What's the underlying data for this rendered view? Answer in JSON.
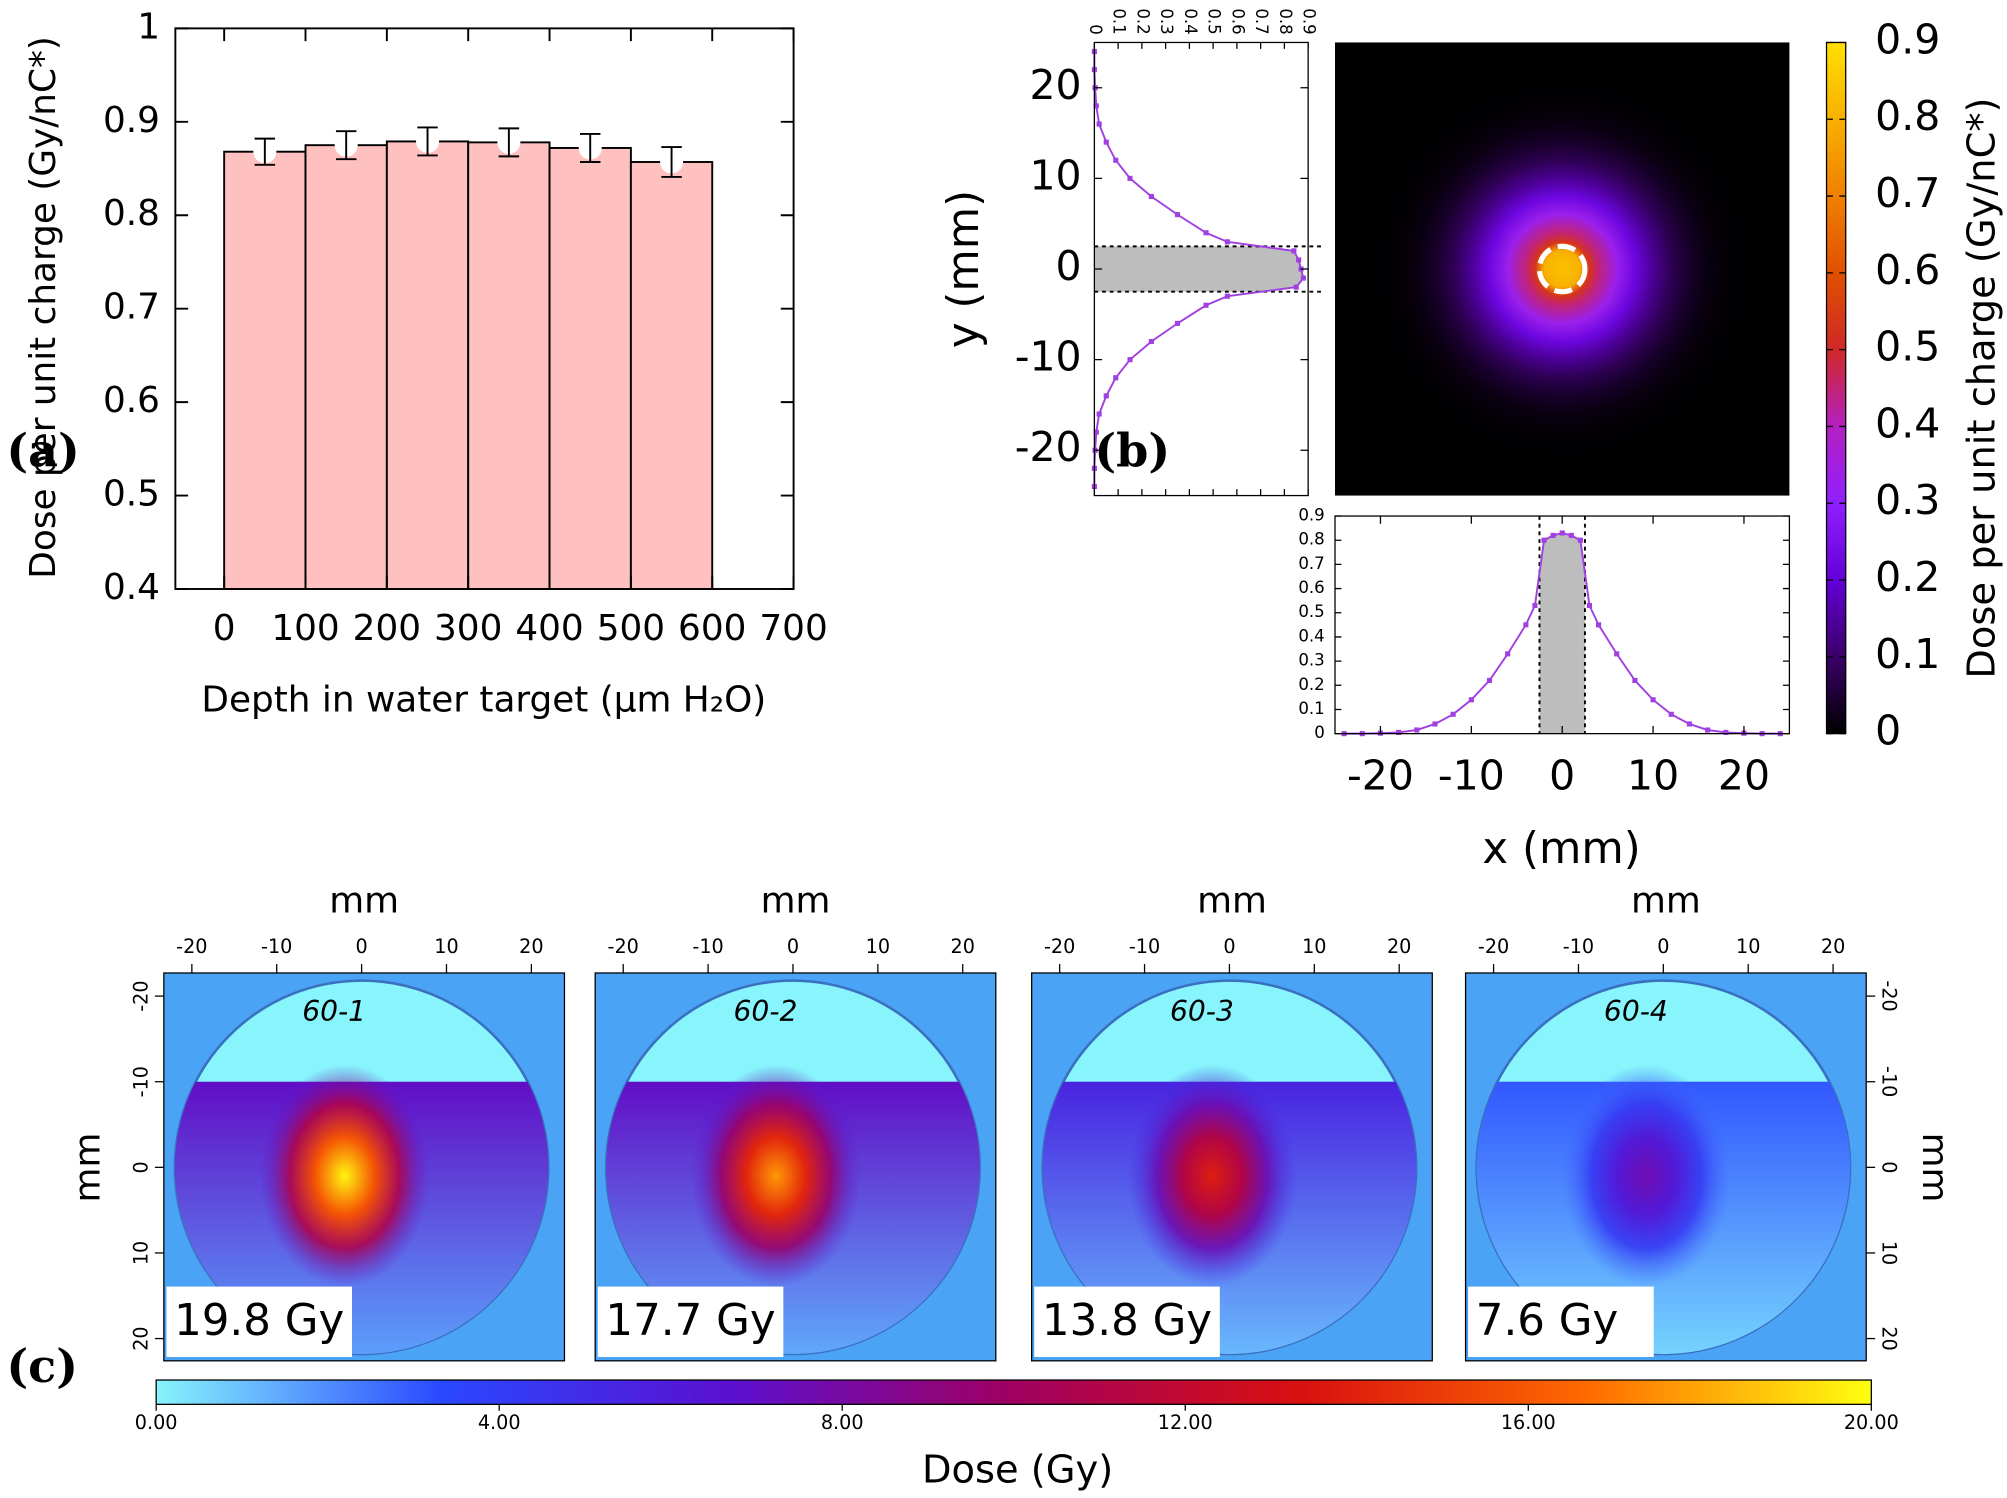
{
  "chart_data": [
    {
      "type": "histogram",
      "panel_label": "(a)",
      "xlabel": "Depth in water target (μm H₂O)",
      "ylabel": "Dose per unit charge (Gy/nC*)",
      "bins": [
        0,
        100,
        200,
        300,
        400,
        500,
        600
      ],
      "values": [
        0.868,
        0.875,
        0.879,
        0.878,
        0.872,
        0.857
      ],
      "errors": [
        0.014,
        0.015,
        0.015,
        0.015,
        0.015,
        0.016
      ],
      "color": "#ffc0c0",
      "xlim": [
        -60,
        700
      ],
      "ylim": [
        0.4,
        1
      ],
      "xticks": [
        0,
        100,
        200,
        300,
        400,
        500,
        600,
        700
      ],
      "yticks": [
        0.4,
        0.5,
        0.6,
        0.7,
        0.8,
        0.9,
        1
      ]
    },
    {
      "type": "heatmap",
      "panel_label": "(b)",
      "xlabel": "x (mm)",
      "ylabel": "y (mm)",
      "xlim": [
        -25,
        25
      ],
      "ylim": [
        -25,
        25
      ],
      "xticks": [
        -20,
        -10,
        0,
        10,
        20
      ],
      "yticks": [
        -20,
        -10,
        0,
        10,
        20
      ],
      "aperture": [
        -2.5,
        2.5
      ],
      "profile_lim": [
        0,
        0.9
      ],
      "profile_ticks": [
        0,
        0.1,
        0.2,
        0.3,
        0.4,
        0.5,
        0.6,
        0.7,
        0.8,
        0.9
      ],
      "profile_color": "#a040e0",
      "x_profile": {
        "x": [
          -24,
          -22,
          -20,
          -18,
          -16,
          -14,
          -12,
          -10,
          -8,
          -6,
          -4,
          -3,
          -2,
          -1,
          0,
          1,
          2,
          3,
          4,
          6,
          8,
          10,
          12,
          14,
          16,
          18,
          20,
          22,
          24
        ],
        "values": [
          0,
          0,
          0.002,
          0.005,
          0.015,
          0.04,
          0.08,
          0.14,
          0.22,
          0.33,
          0.45,
          0.53,
          0.8,
          0.82,
          0.83,
          0.82,
          0.8,
          0.53,
          0.45,
          0.33,
          0.22,
          0.14,
          0.08,
          0.04,
          0.015,
          0.005,
          0.002,
          0,
          0
        ]
      },
      "y_profile": {
        "y": [
          -24,
          -22,
          -20,
          -18,
          -16,
          -14,
          -12,
          -10,
          -8,
          -6,
          -4,
          -3,
          -2,
          -1,
          0,
          1,
          2,
          3,
          4,
          6,
          8,
          10,
          12,
          14,
          16,
          18,
          20,
          22,
          24
        ],
        "values": [
          0,
          0,
          0.003,
          0.008,
          0.02,
          0.05,
          0.09,
          0.15,
          0.24,
          0.35,
          0.47,
          0.56,
          0.85,
          0.88,
          0.87,
          0.86,
          0.84,
          0.56,
          0.47,
          0.35,
          0.24,
          0.15,
          0.09,
          0.05,
          0.02,
          0.008,
          0.003,
          0,
          0
        ]
      },
      "colorbar": {
        "label": "Dose per unit charge (Gy/nC*)",
        "lim": [
          0,
          0.9
        ],
        "ticks": [
          0,
          0.1,
          0.2,
          0.3,
          0.4,
          0.5,
          0.6,
          0.7,
          0.8,
          0.9
        ],
        "colors": [
          "#000000",
          "#3a0068",
          "#6400d8",
          "#9020ff",
          "#b420c0",
          "#d02828",
          "#e05000",
          "#f08000",
          "#f8b000",
          "#ffe000"
        ]
      }
    },
    {
      "type": "film",
      "panel_label": "(c)",
      "axis_label": "mm",
      "xlim": [
        -23.3,
        23.9
      ],
      "ylim": [
        -22.7,
        22.6
      ],
      "xticks": [
        -20,
        -10,
        0,
        10,
        20
      ],
      "yticks": [
        -20,
        -10,
        0,
        10,
        20
      ],
      "values": [
        19.8,
        17.7,
        13.8,
        7.6
      ],
      "value_labels": [
        "19.8 Gy",
        "17.7 Gy",
        "13.8 Gy",
        "7.6 Gy"
      ],
      "film_labels": [
        "60-1",
        "60-2",
        "60-3",
        "60-4"
      ],
      "background": "#4ba3f5",
      "colorbar": {
        "label": "Dose (Gy)",
        "lim": [
          0,
          20
        ],
        "ticks": [
          {
            "value": 0,
            "label": "0.00"
          },
          {
            "value": 4,
            "label": "4.00"
          },
          {
            "value": 8,
            "label": "8.00"
          },
          {
            "value": 12,
            "label": "12.00"
          },
          {
            "value": 16,
            "label": "16.00"
          },
          {
            "value": 20,
            "label": "20.00"
          }
        ],
        "colors": [
          "#88f4fc",
          "#2a48ff",
          "#5a10d0",
          "#a00060",
          "#d81010",
          "#ff6a00",
          "#ffff10"
        ]
      }
    }
  ]
}
